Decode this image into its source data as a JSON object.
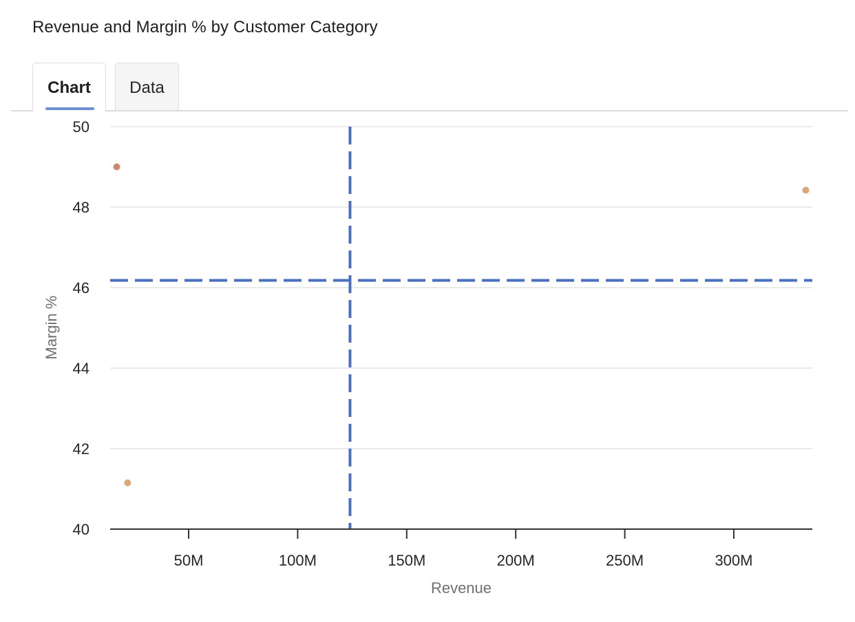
{
  "title": "Revenue and Margin % by Customer Category",
  "tabs": [
    {
      "label": "Chart",
      "active": true
    },
    {
      "label": "Data",
      "active": false
    }
  ],
  "colors": {
    "reference_line": "#4a6fbe",
    "gridline": "#e3e3e3",
    "axis": "#333333",
    "tab_underline": "#6b8fd2"
  },
  "chart_data": {
    "type": "scatter",
    "xlabel": "Revenue",
    "ylabel": "Margin %",
    "xlim": [
      14000000,
      336000000
    ],
    "ylim": [
      40,
      50
    ],
    "x_ticks": [
      {
        "value": 50000000,
        "label": "50M"
      },
      {
        "value": 100000000,
        "label": "100M"
      },
      {
        "value": 150000000,
        "label": "150M"
      },
      {
        "value": 200000000,
        "label": "200M"
      },
      {
        "value": 250000000,
        "label": "250M"
      },
      {
        "value": 300000000,
        "label": "300M"
      }
    ],
    "y_ticks": [
      {
        "value": 40,
        "label": "40"
      },
      {
        "value": 42,
        "label": "42"
      },
      {
        "value": 44,
        "label": "44"
      },
      {
        "value": 46,
        "label": "46"
      },
      {
        "value": 48,
        "label": "48"
      },
      {
        "value": 50,
        "label": "50"
      }
    ],
    "grid": "horizontal",
    "points": [
      {
        "x": 17000000,
        "y": 49.0,
        "color": "#c98a6a"
      },
      {
        "x": 22000000,
        "y": 41.15,
        "color": "#d9a97e"
      },
      {
        "x": 333000000,
        "y": 48.42,
        "color": "#d9a97e"
      }
    ],
    "reference_lines": {
      "x": 124000000,
      "y": 46.18
    }
  }
}
